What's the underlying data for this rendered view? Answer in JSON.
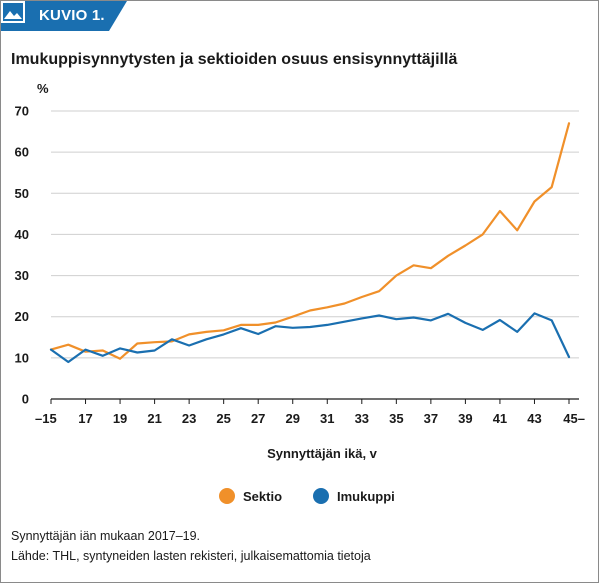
{
  "header": {
    "badge_label": "KUVIO 1.",
    "badge_color": "#1a6fb0"
  },
  "title": "Imukuppisynnytysten ja sektioiden osuus ensisynnyttäjillä",
  "footnotes": [
    "Synnyttäjän iän mukaan 2017–19.",
    "Lähde: THL, syntyneiden lasten rekisteri, julkaisemattomia tietoja"
  ],
  "chart_data": {
    "type": "line",
    "title": "Imukuppisynnytysten ja sektioiden osuus ensisynnyttäjillä",
    "ylabel": "%",
    "xlabel": "Synnyttäjän ikä, v",
    "ylim": [
      0,
      70
    ],
    "xlim": [
      15,
      45
    ],
    "yticks": [
      "0",
      "10",
      "20",
      "30",
      "40",
      "50",
      "60",
      "70"
    ],
    "xtick_labels": [
      "–15",
      "17",
      "19",
      "21",
      "23",
      "25",
      "27",
      "29",
      "31",
      "33",
      "35",
      "37",
      "39",
      "41",
      "43",
      "45–"
    ],
    "grid": "horizontal",
    "legend_position": "bottom",
    "x": [
      15,
      16,
      17,
      18,
      19,
      20,
      21,
      22,
      23,
      24,
      25,
      26,
      27,
      28,
      29,
      30,
      31,
      32,
      33,
      34,
      35,
      36,
      37,
      38,
      39,
      40,
      41,
      42,
      43,
      44,
      45
    ],
    "series": [
      {
        "name": "Sektio",
        "color": "#f0902a",
        "values": [
          12,
          13.2,
          11.5,
          11.8,
          9.8,
          13.5,
          13.8,
          14,
          15.7,
          16.3,
          16.7,
          18,
          18,
          18.6,
          20,
          21.5,
          22.3,
          23.2,
          24.8,
          26.2,
          30,
          32.5,
          31.8,
          34.8,
          37.3,
          40,
          45.7,
          41,
          48,
          51.5,
          67
        ]
      },
      {
        "name": "Imukuppi",
        "color": "#1a6fb0",
        "values": [
          12,
          9,
          12,
          10.5,
          12.3,
          11.3,
          11.8,
          14.5,
          13,
          14.5,
          15.7,
          17.2,
          15.8,
          17.7,
          17.3,
          17.5,
          18,
          18.8,
          19.6,
          20.3,
          19.4,
          19.8,
          19.1,
          20.7,
          18.5,
          16.8,
          19.2,
          16.3,
          20.8,
          19.1,
          10.2
        ]
      }
    ]
  }
}
